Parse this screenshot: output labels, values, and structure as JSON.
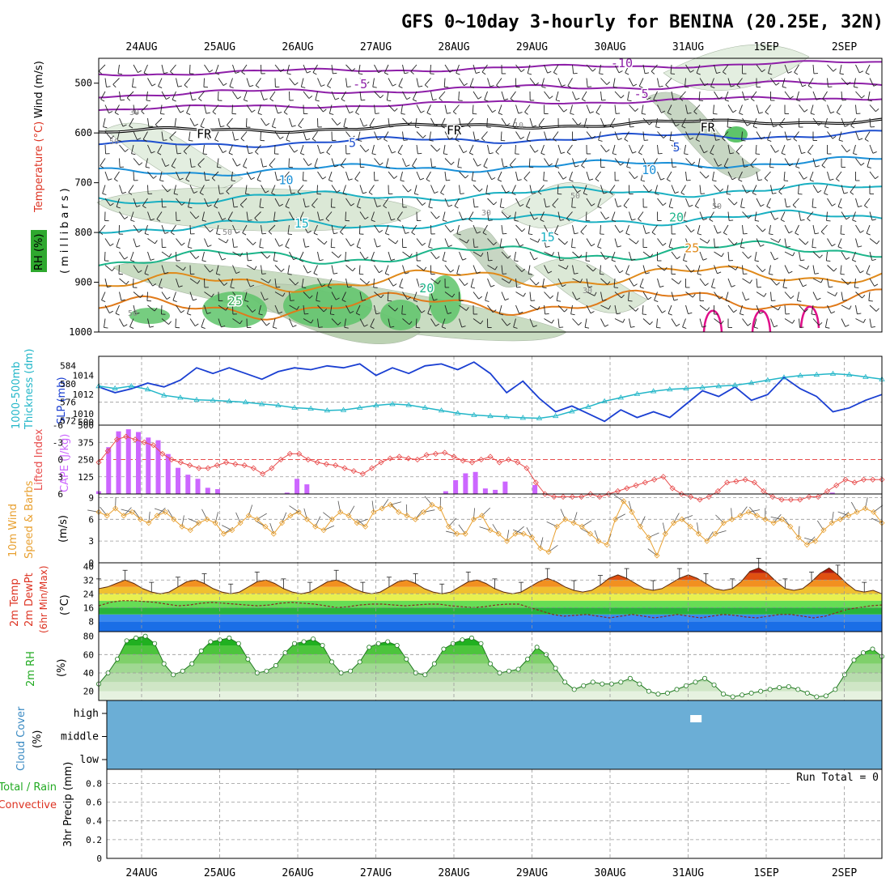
{
  "chart_data": {
    "type": "meteogram",
    "title": "GFS 0~10day 3-hourly for BENINA (20.25E, 32N)",
    "date_labels": [
      "24AUG",
      "25AUG",
      "26AUG",
      "27AUG",
      "28AUG",
      "29AUG",
      "30AUG",
      "31AUG",
      "1SEP",
      "2SEP"
    ],
    "panels": {
      "upper": {
        "ylabel_left": [
          "RH (%)",
          "Temperature (°C)",
          "Wind (m/s)"
        ],
        "ylabel_left_colors": {
          "rh": "#22aa22",
          "temp": "#dd3322",
          "wind": "#000000"
        },
        "ylabel_right": "(millibars)",
        "pressure_ticks": [
          1000,
          900,
          800,
          700,
          600,
          500
        ],
        "ylim": [
          1000,
          450
        ],
        "isotherm_labels": [
          {
            "text": "-10",
            "day": 6.15,
            "p": 468,
            "color": "#8e1fa8"
          },
          {
            "text": "-5",
            "day": 2.8,
            "p": 510,
            "color": "#8e1fa8"
          },
          {
            "text": "-5",
            "day": 6.4,
            "p": 530,
            "color": "#8e1fa8"
          },
          {
            "text": "FR",
            "day": 0.8,
            "p": 610,
            "color": "#000000"
          },
          {
            "text": "FR",
            "day": 4.0,
            "p": 603,
            "color": "#000000"
          },
          {
            "text": "FR",
            "day": 7.25,
            "p": 597,
            "color": "#000000"
          },
          {
            "text": "5",
            "day": 2.7,
            "p": 628,
            "color": "#1e4fcf"
          },
          {
            "text": "5",
            "day": 6.85,
            "p": 637,
            "color": "#1e4fcf"
          },
          {
            "text": "10",
            "day": 1.85,
            "p": 703,
            "color": "#1a90d8"
          },
          {
            "text": "10",
            "day": 6.5,
            "p": 683,
            "color": "#1a90d8"
          },
          {
            "text": "15",
            "day": 2.05,
            "p": 790,
            "color": "#19b0c2"
          },
          {
            "text": "15",
            "day": 5.2,
            "p": 818,
            "color": "#19b0c2"
          },
          {
            "text": "20",
            "day": 3.65,
            "p": 920,
            "color": "#1cb58a"
          },
          {
            "text": "20",
            "day": 6.85,
            "p": 778,
            "color": "#1cb58a"
          },
          {
            "text": "25",
            "day": 1.2,
            "p": 946,
            "color": "#2eaa55"
          },
          {
            "text": "25",
            "day": 7.05,
            "p": 840,
            "color": "#e08a1a"
          }
        ],
        "rh_labels": [
          "30",
          "50",
          "10",
          "50",
          "30",
          "50",
          "30",
          "50",
          "50"
        ]
      },
      "thickness_slp": {
        "ylabel_left": [
          "1000-500mb",
          "Thickness (dm)"
        ],
        "ylabel_right": "SLP (mb)",
        "thickness_ticks": [
          572,
          576,
          580,
          584
        ],
        "slp_ticks": [
          1010,
          1012,
          1014
        ],
        "slp_extra_tick": "500",
        "thickness": [
          579.5,
          579,
          579.5,
          578.8,
          577.5,
          577,
          576.5,
          576.4,
          576.2,
          576,
          575.6,
          575.3,
          574.8,
          574.6,
          574.2,
          574.3,
          574.8,
          575.3,
          575.6,
          575.4,
          574.8,
          574.2,
          573.6,
          573.2,
          573,
          572.8,
          572.6,
          572.5,
          573,
          574,
          575,
          576.2,
          577,
          577.8,
          578.4,
          578.8,
          579,
          579.2,
          579.5,
          579.7,
          580.2,
          580.8,
          581.4,
          581.8,
          582,
          582.2,
          582,
          581.5,
          581
        ],
        "slp": [
          1012.8,
          1012.2,
          1012.6,
          1013.2,
          1012.8,
          1013.5,
          1014.8,
          1014.2,
          1014.8,
          1014.2,
          1013.6,
          1014.4,
          1014.8,
          1014.6,
          1015,
          1014.8,
          1015.2,
          1014,
          1014.8,
          1014.2,
          1015,
          1015.2,
          1014.6,
          1015.4,
          1014.2,
          1012.2,
          1013.4,
          1011.6,
          1010.2,
          1010.8,
          1010,
          1009.2,
          1010.4,
          1009.6,
          1010.2,
          1009.6,
          1011,
          1012.4,
          1011.8,
          1012.8,
          1011.4,
          1012,
          1013.8,
          1012.6,
          1011.8,
          1010.2,
          1010.6,
          1011.4,
          1012
        ],
        "colors": {
          "thickness": "#22b6c8",
          "slp": "#1a3fd2"
        }
      },
      "instability": {
        "ylabel_left": [
          "Lifted Index"
        ],
        "ylabel_right": "CAPE (J/kg)",
        "li_ticks": [
          "6",
          "3",
          "0",
          "-3",
          "-6"
        ],
        "cape_ticks": [
          125,
          250,
          375,
          500
        ],
        "cape": [
          20,
          340,
          455,
          470,
          450,
          410,
          390,
          290,
          190,
          140,
          110,
          45,
          35,
          0,
          0,
          0,
          0,
          0,
          0,
          10,
          110,
          70,
          0,
          0,
          0,
          0,
          0,
          0,
          0,
          0,
          0,
          0,
          0,
          0,
          0,
          20,
          100,
          150,
          160,
          40,
          30,
          90,
          0,
          0,
          65,
          0,
          0,
          0,
          0,
          0,
          0,
          0,
          0,
          0,
          0,
          0,
          0,
          0,
          0,
          0,
          0,
          0,
          0,
          0,
          0,
          0,
          0,
          0,
          0,
          0,
          0,
          0,
          0,
          0,
          10,
          0,
          0,
          0,
          0,
          0
        ],
        "lifted_index": [
          0.5,
          -1.5,
          -3.5,
          -4,
          -3.5,
          -3,
          -2.5,
          -1,
          0,
          0.5,
          1,
          1.5,
          1.5,
          1,
          0.5,
          0.8,
          1,
          1.5,
          2.5,
          1.5,
          0,
          -1,
          -1,
          0,
          0.5,
          0.8,
          1,
          1.5,
          2,
          2.5,
          1.5,
          0.5,
          -0.2,
          -0.5,
          -0.2,
          0,
          -0.8,
          -1,
          -1.2,
          -0.5,
          0.2,
          0.5,
          0,
          -0.5,
          0.5,
          0,
          0.5,
          1.5,
          4,
          6,
          6.5,
          6.5,
          6.5,
          6.5,
          6,
          6.5,
          6,
          5.5,
          5,
          4.5,
          4,
          3.5,
          3,
          5,
          6,
          6.5,
          7,
          6.5,
          5.5,
          4,
          3.8,
          3.5,
          4,
          5.5,
          6.5,
          7,
          7,
          7,
          6.5,
          6.5,
          5.5,
          4.5,
          3.5,
          4,
          3.5,
          3.5,
          3.5
        ],
        "colors": {
          "cape": "#cc66ff",
          "li": "#e84d4d"
        }
      },
      "wind10m": {
        "ylabel_left": [
          "10m Wind",
          "Speed & Barbs"
        ],
        "ylabel_right": "(m/s)",
        "ticks": [
          0,
          3,
          6,
          9
        ],
        "speed": [
          7,
          6.5,
          7.5,
          6.5,
          7,
          6,
          5.5,
          6.5,
          7,
          6,
          5,
          4.5,
          5.5,
          6,
          5.5,
          4,
          4.5,
          5.5,
          6.5,
          6,
          5,
          4,
          5.5,
          6.5,
          7,
          6,
          5,
          4.5,
          6,
          7,
          6.5,
          5.5,
          5,
          7,
          7.5,
          8,
          7,
          6.5,
          6,
          7,
          8,
          7.5,
          5,
          4,
          4,
          6,
          6.5,
          4.5,
          4,
          3,
          4,
          4,
          3.5,
          2,
          1.5,
          5,
          6,
          5.5,
          5,
          4,
          3,
          2.5,
          6,
          8.5,
          7,
          5,
          3.5,
          1,
          4,
          5.5,
          6,
          5,
          4,
          3,
          4,
          5.5,
          6,
          6.5,
          7,
          6.5,
          6,
          5.5,
          6,
          5,
          3.5,
          2.5,
          3,
          4.5,
          5.5,
          6,
          6.5,
          7,
          7.5,
          7,
          5.5
        ],
        "colors": {
          "speed": "#e8a030",
          "barb": "#555555"
        }
      },
      "temperature": {
        "ylabel_left": [
          "2m Temp",
          "2m DewPt",
          "(6hr Min/Max)"
        ],
        "ylabel_right": "(°C)",
        "ticks": [
          8,
          16,
          24,
          32,
          40
        ],
        "temp": [
          27,
          28,
          30,
          32,
          30,
          27,
          25,
          24,
          25,
          28,
          31,
          32,
          30,
          27,
          25,
          24,
          25,
          28,
          31,
          32,
          30,
          27,
          25,
          24,
          25,
          28,
          31,
          32,
          30,
          27,
          25,
          24,
          25,
          28,
          31,
          32,
          30,
          27,
          25,
          24,
          25,
          28,
          31,
          32,
          30,
          27,
          25,
          24,
          25,
          28,
          31,
          33,
          31,
          28,
          26,
          25,
          26,
          29,
          33,
          35,
          33,
          30,
          27,
          26,
          27,
          30,
          33,
          35,
          33,
          30,
          27,
          26,
          27,
          31,
          37,
          39,
          36,
          31,
          27,
          26,
          27,
          31,
          36,
          39,
          35,
          30,
          26,
          25,
          26,
          24
        ],
        "dewpoint": [
          17,
          19,
          20,
          20,
          19.5,
          19,
          18,
          17,
          17.5,
          18.5,
          19,
          18.5,
          18,
          17.5,
          17,
          17.5,
          18.5,
          19,
          18.5,
          18,
          17,
          16,
          16.5,
          17.5,
          18,
          18,
          17.5,
          17,
          17.5,
          18,
          18,
          17,
          16.5,
          16,
          16.5,
          17.5,
          18,
          18,
          16,
          14,
          12,
          11,
          11.5,
          12,
          11,
          10,
          11,
          12,
          11,
          10,
          11,
          12,
          11,
          10,
          11,
          12,
          11.5,
          10.5,
          10,
          11,
          12,
          12,
          11,
          10,
          11,
          13,
          15,
          16,
          17,
          17.5
        ],
        "bands": [
          {
            "from": 0,
            "to": 8,
            "color": "#1a6ee6"
          },
          {
            "from": 8,
            "to": 12,
            "color": "#3a8af0"
          },
          {
            "from": 12,
            "to": 16,
            "color": "#28b43a"
          },
          {
            "from": 16,
            "to": 20,
            "color": "#66dd55"
          },
          {
            "from": 20,
            "to": 24,
            "color": "#e8f050"
          },
          {
            "from": 24,
            "to": 28,
            "color": "#f0c030"
          },
          {
            "from": 28,
            "to": 32,
            "color": "#f29020"
          },
          {
            "from": 32,
            "to": 36,
            "color": "#e05010"
          },
          {
            "from": 36,
            "to": 44,
            "color": "#b01808"
          }
        ]
      },
      "rh2m": {
        "ylabel_left": [
          "2m RH"
        ],
        "ylabel_right": "(%)",
        "ticks": [
          20,
          40,
          60,
          80
        ],
        "rh": [
          28,
          40,
          55,
          75,
          78,
          80,
          72,
          50,
          38,
          42,
          50,
          64,
          74,
          76,
          78,
          72,
          55,
          40,
          42,
          48,
          62,
          72,
          74,
          77,
          70,
          52,
          40,
          42,
          52,
          68,
          72,
          74,
          70,
          55,
          40,
          38,
          50,
          66,
          72,
          76,
          78,
          72,
          50,
          40,
          42,
          44,
          55,
          68,
          60,
          45,
          30,
          22,
          26,
          30,
          28,
          28,
          30,
          34,
          28,
          20,
          17,
          18,
          22,
          26,
          30,
          34,
          27,
          17,
          14,
          16,
          18,
          20,
          22,
          24,
          25,
          22,
          18,
          14,
          15,
          22,
          38,
          54,
          62,
          66,
          58
        ],
        "color": "#2ec22e"
      },
      "cloud": {
        "ylabel_left": [
          "Cloud Cover"
        ],
        "ylabel_right": "(%)",
        "levels": [
          "high",
          "middle",
          "low"
        ],
        "background": "#6baed6",
        "gap_day": 7.1
      },
      "precip": {
        "ylabel_left": [
          "Total / Rain",
          "Convective"
        ],
        "ylabel_left_colors": {
          "total": "#22aa22",
          "convective": "#dd3322"
        },
        "ylabel_right": "3hr Precip (mm)",
        "ticks": [
          0,
          0.2,
          0.4,
          0.6,
          0.8
        ],
        "annotation": "Run Total = 0",
        "values": []
      }
    }
  }
}
